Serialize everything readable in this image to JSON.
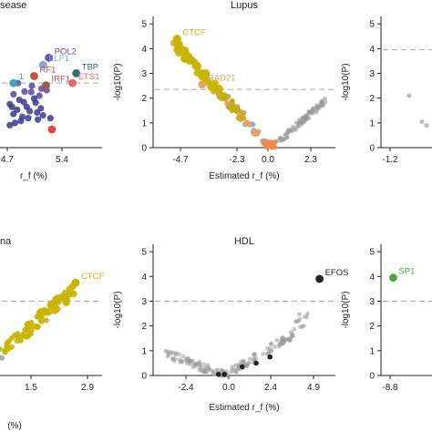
{
  "chart_data": [
    {
      "type": "scatter",
      "title": "sease",
      "xlabel": "r_f (%)",
      "ylabel": "",
      "xticks": [
        "4.7",
        "5.4"
      ],
      "xlim": [
        3.8,
        5.8
      ],
      "ylim": [
        0,
        5
      ],
      "series": [
        {
          "values": [
            [
              4.55,
              1.55
            ],
            [
              4.6,
              1.2
            ],
            [
              4.65,
              1.35
            ],
            [
              4.7,
              0.95
            ],
            [
              4.72,
              1.1
            ],
            [
              4.78,
              1.45
            ],
            [
              4.82,
              1.3
            ],
            [
              4.9,
              1.6
            ],
            [
              4.95,
              1.85
            ],
            [
              4.98,
              2.1
            ],
            [
              4.85,
              2.2
            ],
            [
              4.75,
              2.0
            ],
            [
              4.6,
              1.9
            ],
            [
              4.68,
              1.7
            ],
            [
              4.88,
              1.75
            ],
            [
              5.0,
              1.15
            ],
            [
              5.05,
              2.05
            ],
            [
              4.62,
              0.88
            ],
            [
              4.8,
              1.05
            ],
            [
              4.92,
              1.25
            ],
            [
              5.1,
              1.05
            ],
            [
              4.55,
              0.8
            ],
            [
              4.74,
              1.62
            ],
            [
              4.84,
              1.98
            ],
            [
              4.97,
              1.4
            ],
            [
              4.66,
              2.3
            ],
            [
              4.58,
              1.45
            ],
            [
              4.93,
              1.0
            ]
          ]
        }
      ],
      "highlights": [
        {
          "label": "POL2",
          "x": 5.08,
          "y": 3.2,
          "color": "#6a4fa8"
        },
        {
          "label": "ELF1",
          "x": 5.0,
          "y": 2.95,
          "color": "#7fa7d8"
        },
        {
          "label": "TBP",
          "x": 5.45,
          "y": 2.65,
          "color": "#2f6f70"
        },
        {
          "label": "RF1",
          "x": 4.88,
          "y": 2.55,
          "color": "#c0543e"
        },
        {
          "label": "ETS1",
          "x": 5.4,
          "y": 2.3,
          "color": "#e46a6a"
        },
        {
          "label": "IRF1",
          "x": 5.04,
          "y": 2.22,
          "color": "#a0584a"
        },
        {
          "label": "1",
          "x": 4.6,
          "y": 2.3,
          "color": "#39a9b8"
        },
        {
          "label": "",
          "x": 5.12,
          "y": 0.65,
          "color": "#e04848"
        }
      ],
      "threshold_y": 2.3
    },
    {
      "type": "scatter",
      "title": "Lupus",
      "xlabel": "Estimated r_f (%)",
      "ylabel": "-log10(P)",
      "xticks": [
        "-4.7",
        "-2.3",
        "0.0",
        "2.3"
      ],
      "yticks": [
        "0",
        "1",
        "2",
        "3",
        "4",
        "5"
      ],
      "xlim": [
        -5.9,
        3.2
      ],
      "ylim": [
        0,
        5.3
      ],
      "threshold_y": 2.35,
      "highlights": [
        {
          "label": "CTCF",
          "x": -4.7,
          "y": 4.4,
          "color": "#c8b400"
        },
        {
          "label": "RAD21",
          "x": -3.45,
          "y": 2.55,
          "color": "#e9a25b"
        }
      ]
    },
    {
      "type": "scatter",
      "title": "",
      "xlabel": "",
      "ylabel": "-log10(P)",
      "xticks": [
        "-1.2"
      ],
      "yticks": [
        "0",
        "1",
        "2",
        "3",
        "4",
        "5"
      ],
      "xlim": [
        -1.8,
        1.0
      ],
      "ylim": [
        0,
        5.3
      ],
      "threshold_y": 3.95,
      "series": [
        {
          "values": [
            [
              -0.6,
              2.1
            ],
            [
              -0.05,
              1.05
            ],
            [
              0.15,
              0.9
            ]
          ]
        }
      ]
    },
    {
      "type": "scatter",
      "title": "na",
      "xlabel": "(%)",
      "ylabel": "",
      "xticks": [
        "1.5",
        "2.9"
      ],
      "xlim": [
        -0.6,
        3.6
      ],
      "ylim": [
        0,
        5.3
      ],
      "threshold_y": 3.0,
      "highlights": [
        {
          "label": "CTCF",
          "x": 2.85,
          "y": 3.75,
          "color": "#c8b400"
        }
      ]
    },
    {
      "type": "scatter",
      "title": "HDL",
      "xlabel": "Estimated r_f (%)",
      "ylabel": "-log10(P)",
      "xticks": [
        "-2.4",
        "0.0",
        "2.4",
        "4.9"
      ],
      "yticks": [
        "0",
        "1",
        "2",
        "3",
        "4",
        "5"
      ],
      "xlim": [
        -3.6,
        5.6
      ],
      "ylim": [
        0,
        5.3
      ],
      "threshold_y": 3.0,
      "highlights": [
        {
          "label": "EFOS",
          "x": 4.8,
          "y": 3.9,
          "color": "#222222"
        }
      ]
    },
    {
      "type": "scatter",
      "title": "",
      "xlabel": "",
      "ylabel": "-log10(P)",
      "xticks": [
        "-8.8"
      ],
      "yticks": [
        "0",
        "1",
        "2",
        "3",
        "4",
        "5"
      ],
      "xlim": [
        -10.8,
        1.0
      ],
      "ylim": [
        0,
        5.3
      ],
      "threshold_y": 3.0,
      "highlights": [
        {
          "label": "SP1",
          "x": -8.6,
          "y": 3.95,
          "color": "#4aa832"
        }
      ]
    }
  ]
}
